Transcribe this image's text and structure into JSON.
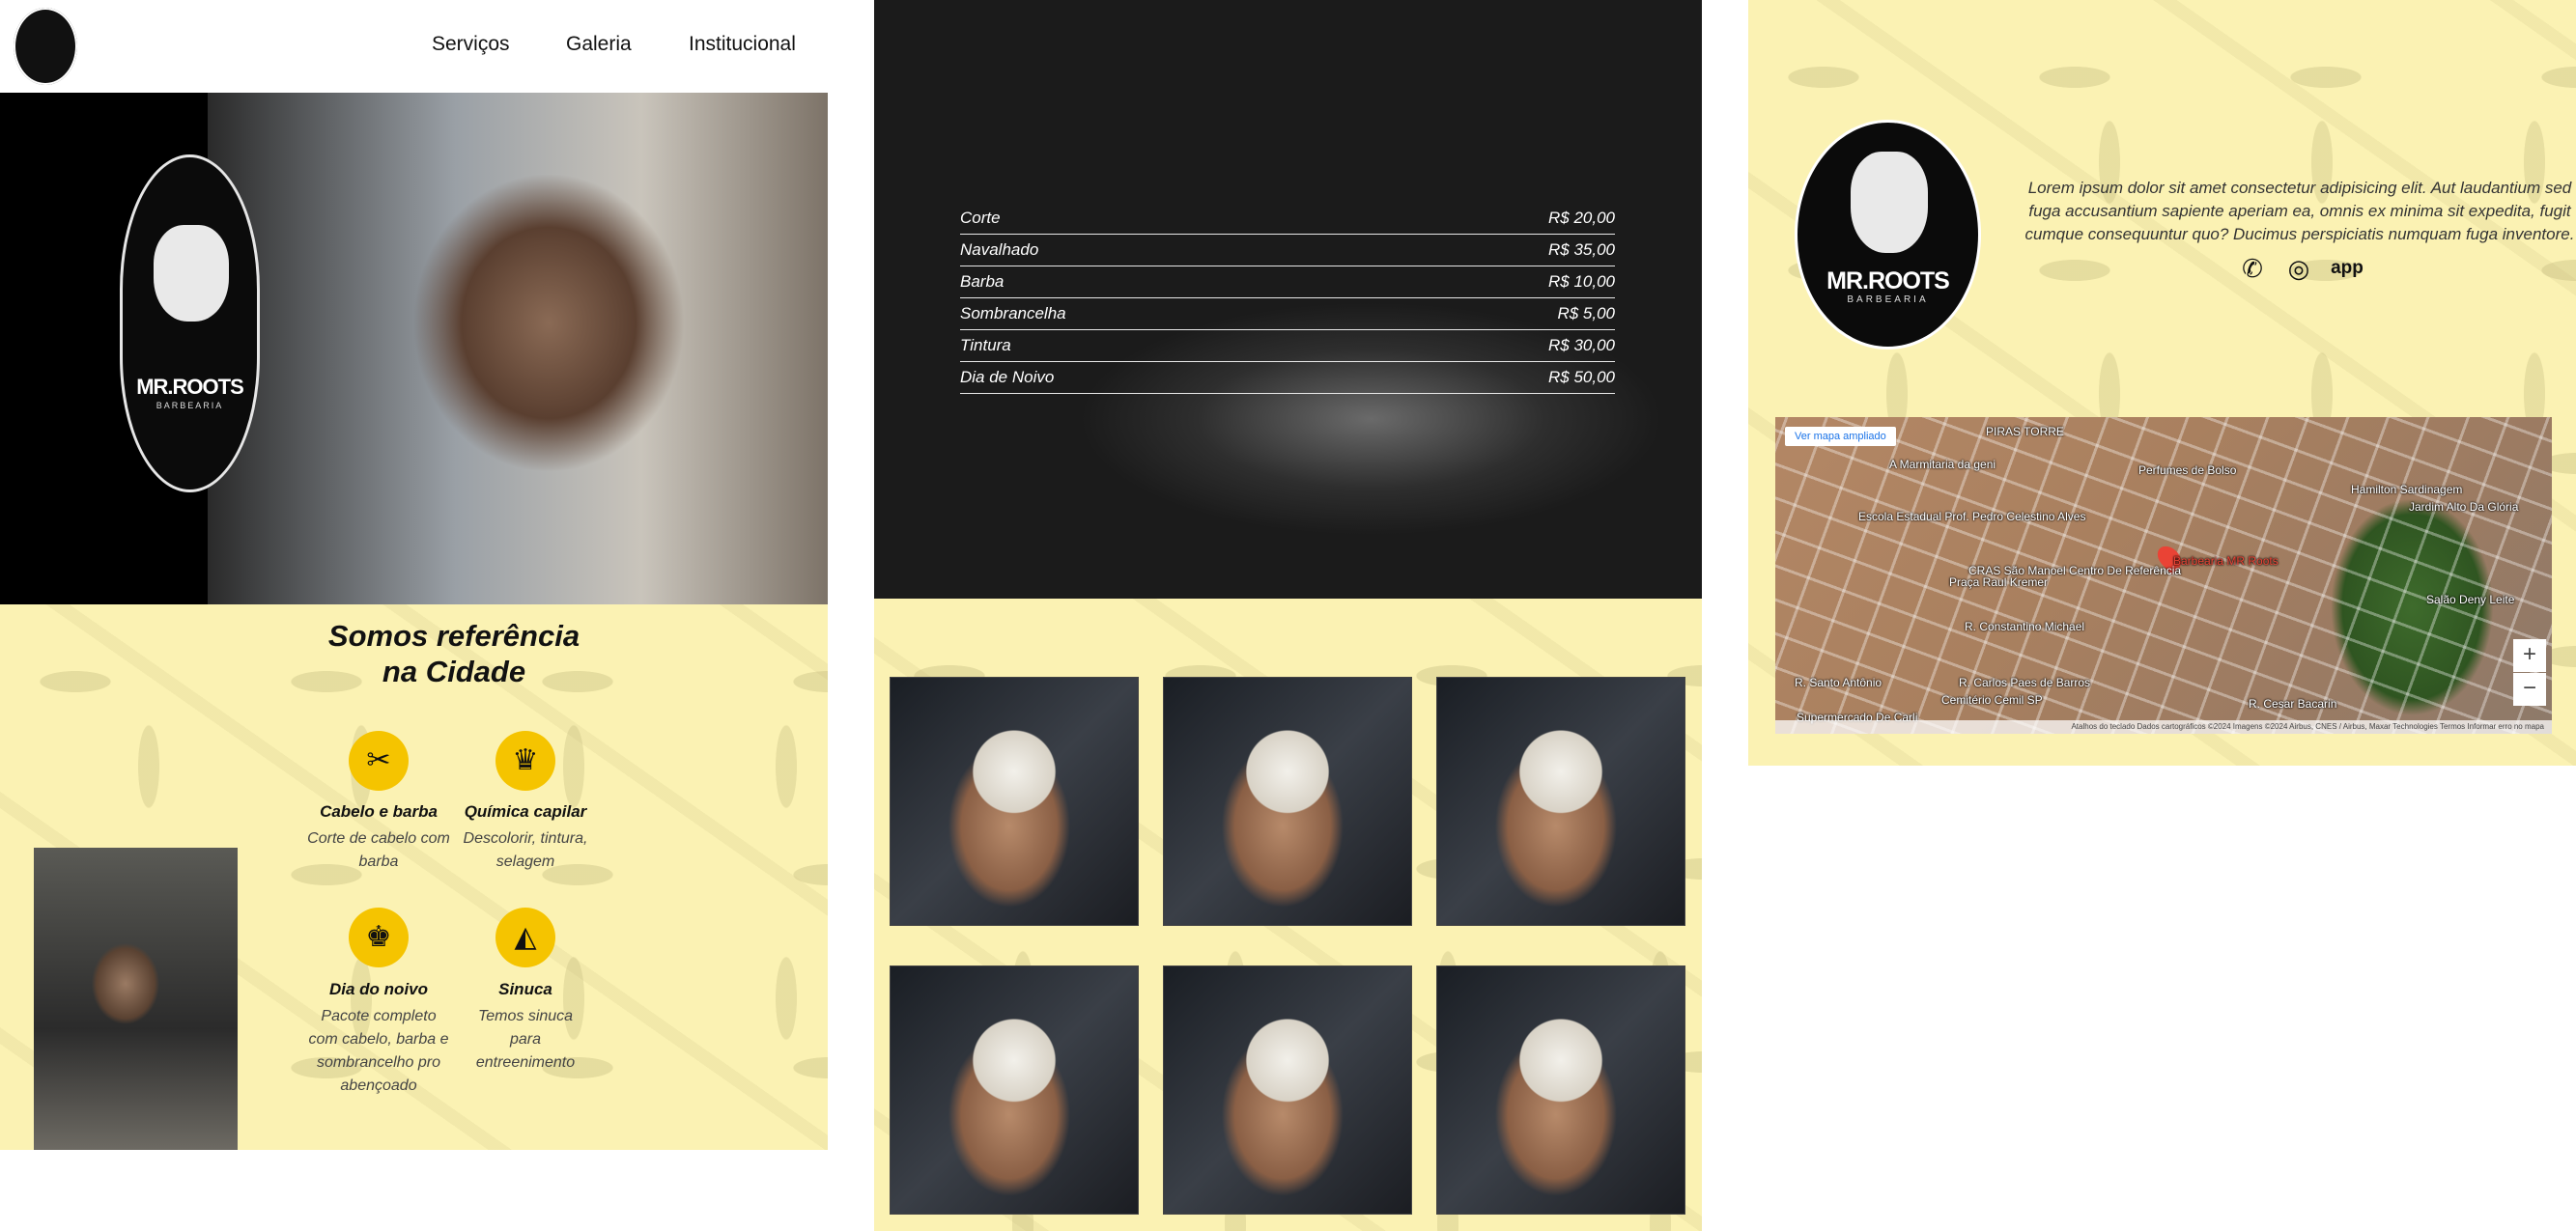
{
  "nav": {
    "logo_alt": "MR.ROOTS",
    "links": [
      "Serviços",
      "Galeria",
      "Institucional"
    ]
  },
  "hero": {
    "logo_text": "MR.ROOTS",
    "logo_sub": "BARBEARIA"
  },
  "about": {
    "title_line1": "Somos referência",
    "title_line2": "na Cidade",
    "services": [
      {
        "icon": "barber-icon",
        "glyph": "✂",
        "title": "Cabelo e barba",
        "desc": "Corte de cabelo com barba"
      },
      {
        "icon": "hair-chemical-icon",
        "glyph": "♛",
        "title": "Química capilar",
        "desc": "Descolorir, tintura, selagem"
      },
      {
        "icon": "groom-icon",
        "glyph": "♚",
        "title": "Dia do noivo",
        "desc": "Pacote completo com cabelo, barba e sombrancelho pro abençoado"
      },
      {
        "icon": "billiards-icon",
        "glyph": "◭",
        "title": "Sinuca",
        "desc": "Temos sinuca para entreenimento"
      }
    ]
  },
  "prices": [
    {
      "name": "Corte",
      "price": "R$ 20,00"
    },
    {
      "name": "Navalhado",
      "price": "R$ 35,00"
    },
    {
      "name": "Barba",
      "price": "R$ 10,00"
    },
    {
      "name": "Sombrancelha",
      "price": "R$ 5,00"
    },
    {
      "name": "Tintura",
      "price": "R$ 30,00"
    },
    {
      "name": "Dia de Noivo",
      "price": "R$ 50,00"
    }
  ],
  "gallery": {
    "count": 6
  },
  "institutional": {
    "logo_text": "MR.ROOTS",
    "logo_sub": "BARBEARIA",
    "text": "Lorem ipsum dolor sit amet consectetur adipisicing elit. Aut laudantium sed fuga accusantium sapiente aperiam ea, omnis ex minima sit expedita, fugit cumque consequuntur quo? Ducimus perspiciatis numquam fuga inventore.",
    "social": {
      "whatsapp": "whatsapp-icon",
      "instagram": "instagram-icon",
      "app_label": "app"
    }
  },
  "map": {
    "enlarge_label": "Ver mapa ampliado",
    "labels": [
      "PIRAS TORRE",
      "A Marmitaria da geni",
      "Perfumes de Bolso",
      "Hamilton Sardinagem",
      "Jardim Alto Da Glória",
      "Escola Estadual Prof. Pedro Celestino Alves",
      "Barbearia MR Roots",
      "CRAS São Manoel Centro De Referência",
      "R. Constantino Michael",
      "Salão Deny Leite",
      "R. Santo Antônio",
      "R. Carlos Paes de Barros",
      "Supermercado De Carli",
      "Cemitério Cemil SP",
      "R. Cesar Bacarin",
      "Praça Raul Kremer"
    ],
    "zoom_in": "+",
    "zoom_out": "−",
    "footer": "Atalhos do teclado   Dados cartográficos ©2024 Imagens ©2024 Airbus, CNES / Airbus, Maxar Technologies   Termos   Informar erro no mapa"
  }
}
